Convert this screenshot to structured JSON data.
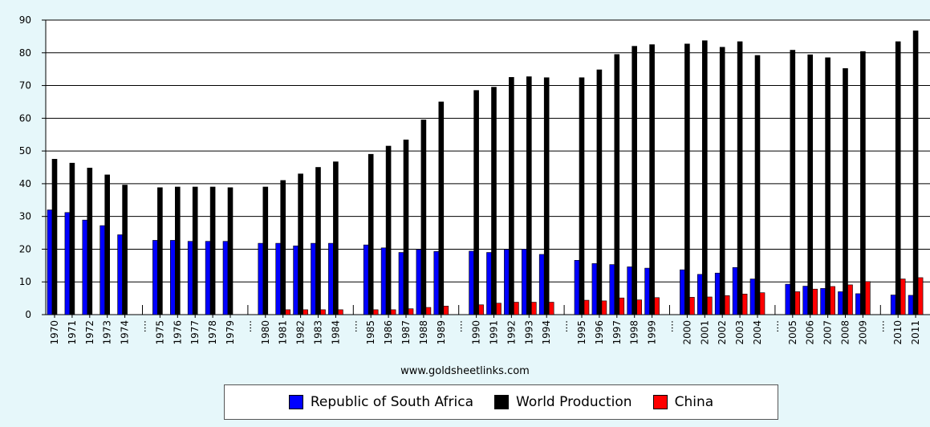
{
  "chart_data": {
    "type": "bar",
    "title": "",
    "xlabel": "",
    "ylabel": "",
    "ylim": [
      0,
      90
    ],
    "yticks": [
      0,
      10,
      20,
      30,
      40,
      50,
      60,
      70,
      80,
      90
    ],
    "grid": true,
    "legend_position": "bottom",
    "gap_label": "....",
    "groups": [
      [
        "1970",
        "1971",
        "1972",
        "1973",
        "1974"
      ],
      [
        "1975",
        "1976",
        "1977",
        "1978",
        "1979"
      ],
      [
        "1980",
        "1981",
        "1982",
        "1983",
        "1984"
      ],
      [
        "1985",
        "1986",
        "1987",
        "1988",
        "1989"
      ],
      [
        "1990",
        "1991",
        "1992",
        "1993",
        "1994"
      ],
      [
        "1995",
        "1996",
        "1997",
        "1998",
        "1999"
      ],
      [
        "2000",
        "2001",
        "2002",
        "2003",
        "2004"
      ],
      [
        "2005",
        "2006",
        "2007",
        "2008",
        "2009"
      ],
      [
        "2010",
        "2011"
      ]
    ],
    "series": [
      {
        "name": "Republic of South Africa",
        "color": "#0000ff",
        "values": [
          32,
          31.2,
          28.9,
          27.2,
          24.4,
          22.7,
          22.7,
          22.4,
          22.4,
          22.4,
          21.8,
          21.8,
          21,
          21.8,
          21.8,
          21.3,
          20.4,
          19,
          19.9,
          19.3,
          19.4,
          19,
          19.9,
          20,
          18.4,
          16.6,
          15.6,
          15.3,
          14.6,
          14.2,
          13.7,
          12.3,
          12.7,
          14.4,
          10.9,
          9.3,
          8.7,
          8,
          7,
          6.4,
          6,
          5.9
        ]
      },
      {
        "name": "World Production",
        "color": "#000000",
        "values": [
          47.5,
          46.3,
          44.8,
          42.7,
          39.6,
          38.8,
          39,
          39,
          39,
          38.8,
          39,
          41,
          43,
          45,
          46.7,
          49,
          51.5,
          53.4,
          59.5,
          65,
          68.5,
          69.5,
          72.5,
          72.7,
          72.4,
          72.4,
          74.8,
          79.5,
          82,
          82.5,
          82.7,
          83.7,
          81.7,
          83.4,
          79.2,
          80.8,
          79.4,
          78.5,
          75.2,
          80.4,
          83.4,
          86.7
        ]
      },
      {
        "name": "China",
        "color": "#ff0000",
        "values": [
          0,
          0,
          0,
          0,
          0,
          0,
          0,
          0,
          0,
          0,
          0,
          1.5,
          1.5,
          1.5,
          1.5,
          1.5,
          1.5,
          1.8,
          2.2,
          2.6,
          3,
          3.5,
          3.8,
          3.8,
          3.8,
          4.4,
          4.2,
          5.1,
          4.5,
          5.2,
          5.3,
          5.4,
          5.8,
          6.3,
          6.7,
          7.0,
          7.8,
          8.6,
          9.1,
          10.1,
          10.9,
          11.3
        ]
      }
    ]
  },
  "source_text": "www.goldsheetlinks.com"
}
